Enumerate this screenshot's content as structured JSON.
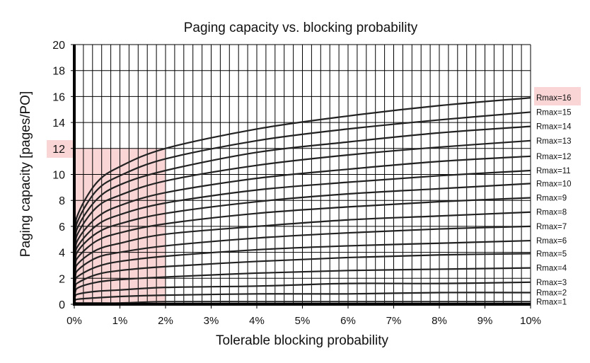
{
  "chart_data": {
    "type": "line",
    "title": "Paging capacity vs. blocking probability",
    "xlabel": "Tolerable blocking probability",
    "ylabel": "Paging capacity [pages/PO]",
    "xlim": [
      0,
      10
    ],
    "ylim": [
      0,
      20
    ],
    "x_ticks": [
      "0%",
      "1%",
      "2%",
      "3%",
      "4%",
      "5%",
      "6%",
      "7%",
      "8%",
      "9%",
      "10%"
    ],
    "y_ticks": [
      "0",
      "2",
      "4",
      "6",
      "8",
      "10",
      "12",
      "14",
      "16",
      "18",
      "20"
    ],
    "grid": true,
    "highlight_region": {
      "x": [
        0,
        2
      ],
      "y": [
        0,
        12
      ],
      "color": "#f9d5d5"
    },
    "highlight_labels": [
      "12",
      "Rmax=16"
    ],
    "line_color": "#222222",
    "x": [
      0,
      0.02,
      0.1,
      0.5,
      1,
      2,
      4,
      6,
      8,
      10
    ],
    "series": [
      {
        "name": "Rmax=16",
        "values": [
          0,
          5.4,
          7.1,
          9.4,
          10.6,
          12.0,
          13.5,
          14.5,
          15.3,
          15.9
        ]
      },
      {
        "name": "Rmax=15",
        "values": [
          0,
          5.0,
          6.6,
          8.8,
          9.9,
          11.2,
          12.6,
          13.5,
          14.2,
          14.8
        ]
      },
      {
        "name": "Rmax=14",
        "values": [
          0,
          4.6,
          6.1,
          8.1,
          9.2,
          10.3,
          11.7,
          12.5,
          13.2,
          13.7
        ]
      },
      {
        "name": "Rmax=13",
        "values": [
          0,
          4.2,
          5.6,
          7.5,
          8.4,
          9.5,
          10.7,
          11.5,
          12.1,
          12.6
        ]
      },
      {
        "name": "Rmax=12",
        "values": [
          0,
          3.8,
          5.1,
          6.7,
          7.6,
          8.6,
          9.7,
          10.4,
          11.0,
          11.4
        ]
      },
      {
        "name": "Rmax=11",
        "values": [
          0,
          3.5,
          4.6,
          6.1,
          6.9,
          7.8,
          8.8,
          9.4,
          9.9,
          10.3
        ]
      },
      {
        "name": "Rmax=10",
        "values": [
          0,
          3.1,
          4.2,
          5.5,
          6.2,
          7.0,
          7.9,
          8.5,
          8.9,
          9.3
        ]
      },
      {
        "name": "Rmax=9",
        "values": [
          0,
          2.8,
          3.7,
          4.9,
          5.5,
          6.2,
          7.0,
          7.5,
          7.9,
          8.2
        ]
      },
      {
        "name": "Rmax=8",
        "values": [
          0,
          2.4,
          3.2,
          4.2,
          4.7,
          5.4,
          6.0,
          6.5,
          6.8,
          7.1
        ]
      },
      {
        "name": "Rmax=7",
        "values": [
          0,
          2.0,
          2.7,
          3.6,
          4.0,
          4.5,
          5.1,
          5.5,
          5.8,
          6.0
        ]
      },
      {
        "name": "Rmax=6",
        "values": [
          0,
          1.7,
          2.2,
          2.9,
          3.3,
          3.7,
          4.2,
          4.5,
          4.7,
          4.9
        ]
      },
      {
        "name": "Rmax=5",
        "values": [
          0,
          1.3,
          1.7,
          2.3,
          2.6,
          2.9,
          3.3,
          3.6,
          3.8,
          3.9
        ]
      },
      {
        "name": "Rmax=4",
        "values": [
          0,
          0.9,
          1.3,
          1.7,
          1.9,
          2.1,
          2.4,
          2.6,
          2.7,
          2.8
        ]
      },
      {
        "name": "Rmax=3",
        "values": [
          0,
          0.6,
          0.8,
          1.0,
          1.1,
          1.3,
          1.4,
          1.6,
          1.6,
          1.7
        ]
      },
      {
        "name": "Rmax=2",
        "values": [
          0,
          0.3,
          0.4,
          0.5,
          0.6,
          0.7,
          0.8,
          0.8,
          0.9,
          0.9
        ]
      },
      {
        "name": "Rmax=1",
        "values": [
          0,
          0.1,
          0.1,
          0.1,
          0.1,
          0.2,
          0.2,
          0.2,
          0.2,
          0.2
        ]
      }
    ]
  }
}
